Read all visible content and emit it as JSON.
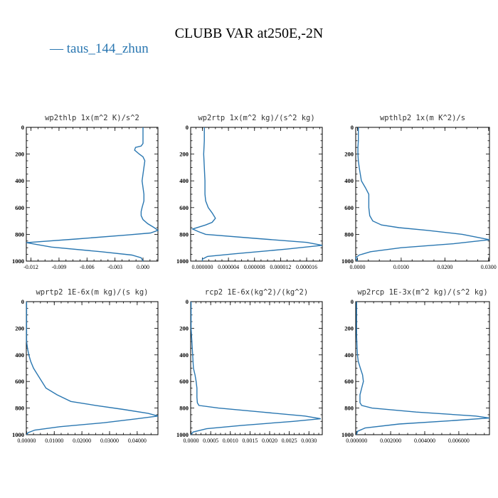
{
  "title": "CLUBB VAR at250E,-2N",
  "legend": {
    "symbol": "—",
    "label": "taus_144_zhun",
    "color": "#2a77b1"
  },
  "chart_data": [
    {
      "type": "line",
      "title": "wp2thlp  1x(m^2 K)/s^2",
      "xlim": [
        -0.0125,
        0.0016
      ],
      "ylim": [
        1000,
        0
      ],
      "xticks": [
        -0.012,
        -0.009,
        -0.006,
        -0.003,
        0.0
      ],
      "xtick_labels": [
        "-0.012",
        "-0.009",
        "-0.006",
        "-0.003",
        "0.000"
      ],
      "yticks": [
        0,
        200,
        400,
        600,
        800,
        1000
      ],
      "series": [
        {
          "x": [
            0,
            0,
            0,
            -0.0002,
            -0.0008,
            -0.0009,
            -0.0004,
            0,
            0.0002,
            0.0001,
            0,
            -0.0001,
            0,
            0.0001,
            0.0001,
            -0.0001,
            -0.0002,
            -0.0002,
            0,
            0.0005,
            0.0012,
            0.0016,
            0.0008,
            -0.0017,
            -0.0072,
            -0.0125,
            -0.0098,
            -0.0045,
            -0.0012,
            -0.0002,
            0
          ],
          "y": [
            0,
            100,
            120,
            140,
            150,
            170,
            200,
            220,
            250,
            300,
            350,
            400,
            450,
            500,
            550,
            600,
            630,
            660,
            690,
            720,
            750,
            770,
            790,
            805,
            835,
            862,
            895,
            930,
            955,
            975,
            1000
          ]
        }
      ]
    },
    {
      "type": "line",
      "title": "wp2rtp  1x(m^2 kg)/(s^2 kg)",
      "xlim": [
        -1.8e-06,
        1.84e-05
      ],
      "ylim": [
        1000,
        0
      ],
      "xticks": [
        0.0,
        4e-06,
        8e-06,
        1.2e-05,
        1.6e-05
      ],
      "xtick_labels": [
        "0.000000",
        "0.000004",
        "0.000008",
        "0.000012",
        "0.000016"
      ],
      "yticks": [
        0,
        200,
        400,
        600,
        800,
        1000
      ],
      "series": [
        {
          "x": [
            3e-07,
            3e-07,
            2e-07,
            3e-07,
            4e-07,
            4e-07,
            5e-07,
            9e-07,
            1.5e-06,
            2e-06,
            1.5e-06,
            5e-07,
            -5e-07,
            -1.5e-06,
            -6e-07,
            5e-07,
            8e-06,
            1.6e-05,
            1.84e-05,
            1.3e-05,
            5e-06,
            8e-07,
            0,
            0
          ],
          "y": [
            0,
            100,
            200,
            300,
            400,
            500,
            550,
            600,
            640,
            680,
            710,
            730,
            745,
            760,
            780,
            800,
            830,
            860,
            882,
            910,
            945,
            965,
            985,
            1000
          ]
        }
      ]
    },
    {
      "type": "line",
      "title": "wpthlp2  1x(m K^2)/s",
      "xlim": [
        -0.0004,
        0.0302
      ],
      "ylim": [
        1000,
        0
      ],
      "xticks": [
        0.0,
        0.01,
        0.02,
        0.03
      ],
      "xtick_labels": [
        "0.0000",
        "0.0100",
        "0.0200",
        "0.0300"
      ],
      "yticks": [
        0,
        200,
        400,
        600,
        800,
        1000
      ],
      "series": [
        {
          "x": [
            0.0002,
            0.0002,
            0.0001,
            0.0001,
            0.0002,
            0.0004,
            0.0009,
            0.0018,
            0.0026,
            0.0026,
            0.0028,
            0.0035,
            0.0055,
            0.0095,
            0.016,
            0.024,
            0.0302,
            0.022,
            0.01,
            0.003,
            0.0004,
            -0.0004,
            0
          ],
          "y": [
            0,
            100,
            150,
            200,
            250,
            300,
            400,
            450,
            500,
            600,
            660,
            700,
            730,
            750,
            770,
            800,
            840,
            870,
            900,
            930,
            955,
            975,
            1000
          ]
        }
      ]
    },
    {
      "type": "line",
      "title": "wprtp2  1E-6x(m kg)/(s kg)",
      "xlim": [
        -0.0001,
        0.0475
      ],
      "ylim": [
        1000,
        0
      ],
      "xticks": [
        0.0,
        0.01,
        0.02,
        0.03,
        0.04
      ],
      "xtick_labels": [
        "0.00000",
        "0.01000",
        "0.02000",
        "0.03000",
        "0.04000"
      ],
      "yticks": [
        0,
        200,
        400,
        600,
        800,
        1000
      ],
      "series": [
        {
          "x": [
            0,
            0,
            0,
            0.0003,
            0.0008,
            0.0015,
            0.0025,
            0.004,
            0.0055,
            0.007,
            0.011,
            0.016,
            0.025,
            0.035,
            0.044,
            0.0475,
            0.04,
            0.028,
            0.012,
            0.003,
            0.0005,
            0
          ],
          "y": [
            0,
            200,
            300,
            350,
            400,
            450,
            500,
            550,
            600,
            650,
            700,
            750,
            780,
            810,
            840,
            860,
            880,
            910,
            940,
            965,
            985,
            1000
          ]
        }
      ]
    },
    {
      "type": "line",
      "title": "rcp2  1E-6x(kg^2)/(kg^2)",
      "xlim": [
        -1e-05,
        0.00334
      ],
      "ylim": [
        1000,
        0
      ],
      "xticks": [
        0.0,
        0.0005,
        0.001,
        0.0015,
        0.002,
        0.0025,
        0.003
      ],
      "xtick_labels": [
        "0.0000",
        "0.0005",
        "0.0010",
        "0.0015",
        "0.0020",
        "0.0025",
        "0.0030"
      ],
      "yticks": [
        0,
        200,
        400,
        600,
        800,
        1000
      ],
      "series": [
        {
          "x": [
            0,
            0,
            2e-05,
            4e-05,
            6e-05,
            0.0001,
            0.00013,
            0.00015,
            0.00015,
            0.00016,
            0.0002,
            0.0007,
            0.0018,
            0.0029,
            0.0033,
            0.0026,
            0.0013,
            0.0004,
            5e-05,
            0
          ],
          "y": [
            0,
            200,
            300,
            400,
            500,
            550,
            600,
            650,
            720,
            760,
            780,
            800,
            830,
            860,
            880,
            900,
            930,
            955,
            980,
            1000
          ]
        }
      ]
    },
    {
      "type": "line",
      "title": "wp2rcp  1E-3x(m^2 kg)/(s^2 kg)",
      "xlim": [
        -5e-05,
        0.0078
      ],
      "ylim": [
        1000,
        0
      ],
      "xticks": [
        0.0,
        0.002,
        0.004,
        0.006
      ],
      "xtick_labels": [
        "0.000000",
        "0.002000",
        "0.004000",
        "0.006000"
      ],
      "yticks": [
        0,
        200,
        400,
        600,
        800,
        1000
      ],
      "series": [
        {
          "x": [
            0,
            0,
            3e-05,
            5e-05,
            0.0001,
            0.00022,
            0.00035,
            0.0004,
            0.0003,
            0.0002,
            0.0002,
            0.0003,
            0.0009,
            0.0035,
            0.007,
            0.0078,
            0.0055,
            0.0025,
            0.0005,
            5e-05,
            0
          ],
          "y": [
            0,
            250,
            350,
            400,
            450,
            500,
            550,
            600,
            650,
            700,
            760,
            780,
            800,
            830,
            860,
            875,
            895,
            920,
            950,
            975,
            1000
          ]
        }
      ]
    }
  ]
}
